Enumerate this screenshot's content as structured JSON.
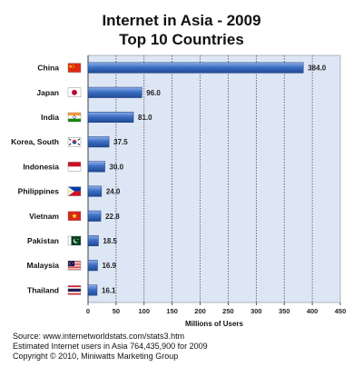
{
  "chart_data": {
    "type": "bar",
    "orientation": "horizontal",
    "title": "Internet in Asia - 2009",
    "subtitle": "Top 10 Countries",
    "categories": [
      "China",
      "Japan",
      "India",
      "Korea, South",
      "Indonesia",
      "Philippines",
      "Vietnam",
      "Pakistan",
      "Malaysia",
      "Thailand"
    ],
    "values": [
      384.0,
      96.0,
      81.0,
      37.5,
      30.0,
      24.0,
      22.8,
      18.5,
      16.9,
      16.1
    ],
    "value_labels": [
      "384.0",
      "96.0",
      "81.0",
      "37.5",
      "30.0",
      "24.0",
      "22.8",
      "18.5",
      "16.9",
      "16.1"
    ],
    "flag_icons": [
      "china-flag-icon",
      "japan-flag-icon",
      "india-flag-icon",
      "south-korea-flag-icon",
      "indonesia-flag-icon",
      "philippines-flag-icon",
      "vietnam-flag-icon",
      "pakistan-flag-icon",
      "malaysia-flag-icon",
      "thailand-flag-icon"
    ],
    "xlabel": "Millions of Users",
    "ylabel": "",
    "xlim": [
      0,
      450
    ],
    "xticks": [
      "0",
      "50",
      "100",
      "150",
      "200",
      "250",
      "300",
      "350",
      "400",
      "450"
    ],
    "grid": true,
    "colors": {
      "bar": "#2f5fb0",
      "bar_highlight": "#8fb0e8",
      "plot_bg": "#dde6f4",
      "grid": "#3a3a3a"
    }
  },
  "footer": {
    "source": "Source: www.internetworldstats.com/stats3.htm",
    "estimate": "Estimated Internet users in Asia 764,435,900 for 2009",
    "copyright": "Copyright © 2010, Miniwatts Marketing Group"
  }
}
